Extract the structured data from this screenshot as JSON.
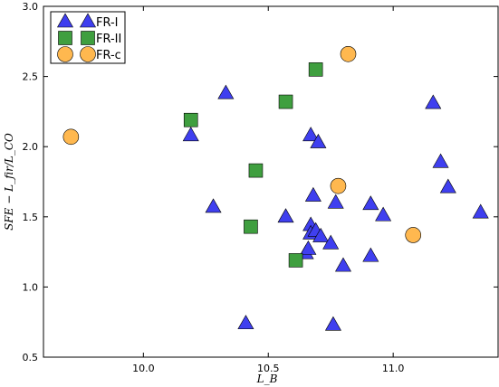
{
  "chart_data": {
    "type": "scatter",
    "xlabel": "L_B",
    "ylabel": "SFE − L_fir/L_CO",
    "xlim": [
      9.6,
      11.42
    ],
    "ylim": [
      0.5,
      3.0
    ],
    "xticks": [
      "10.0",
      "10.5",
      "11.0"
    ],
    "xtick_values": [
      10.0,
      10.5,
      11.0
    ],
    "yticks": [
      "0.5",
      "1.0",
      "1.5",
      "2.0",
      "2.5",
      "3.0"
    ],
    "ytick_values": [
      0.5,
      1.0,
      1.5,
      2.0,
      2.5,
      3.0
    ],
    "grid": false,
    "legend_position": "top-left",
    "series": [
      {
        "name": "FR-I",
        "marker": "triangle",
        "color": "#3f3fef",
        "points": [
          [
            10.19,
            2.08
          ],
          [
            10.28,
            1.57
          ],
          [
            10.33,
            2.38
          ],
          [
            10.41,
            0.74
          ],
          [
            10.57,
            1.5
          ],
          [
            10.65,
            1.24
          ],
          [
            10.66,
            1.27
          ],
          [
            10.67,
            1.44
          ],
          [
            10.67,
            1.38
          ],
          [
            10.67,
            2.08
          ],
          [
            10.68,
            1.65
          ],
          [
            10.69,
            1.4
          ],
          [
            10.7,
            2.03
          ],
          [
            10.71,
            1.36
          ],
          [
            10.75,
            1.31
          ],
          [
            10.76,
            0.73
          ],
          [
            10.77,
            1.6
          ],
          [
            10.8,
            1.15
          ],
          [
            10.91,
            1.59
          ],
          [
            10.91,
            1.22
          ],
          [
            10.96,
            1.51
          ],
          [
            11.16,
            2.31
          ],
          [
            11.19,
            1.89
          ],
          [
            11.22,
            1.71
          ],
          [
            11.35,
            1.53
          ]
        ]
      },
      {
        "name": "FR-II",
        "marker": "square",
        "color": "#3f9f3f",
        "points": [
          [
            10.19,
            2.19
          ],
          [
            10.43,
            1.43
          ],
          [
            10.45,
            1.83
          ],
          [
            10.57,
            2.32
          ],
          [
            10.61,
            1.19
          ],
          [
            10.69,
            2.55
          ]
        ]
      },
      {
        "name": "FR-c",
        "marker": "circle",
        "color": "#ffb84f",
        "points": [
          [
            9.71,
            2.07
          ],
          [
            10.78,
            1.72
          ],
          [
            10.82,
            2.66
          ],
          [
            11.08,
            1.37
          ]
        ]
      }
    ]
  }
}
